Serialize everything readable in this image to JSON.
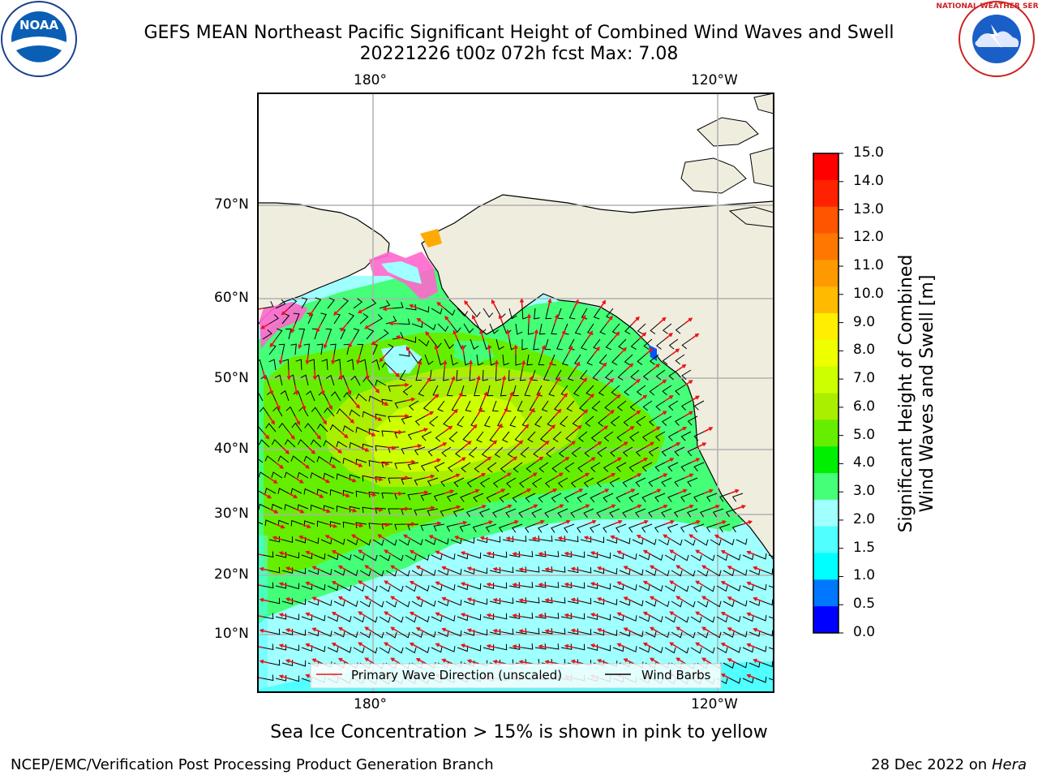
{
  "header": {
    "title_line1": "GEFS MEAN Northeast Pacific Significant Height of Combined Wind Waves and Swell",
    "title_line2": "20221226 t00z 072h fcst   Max: 7.08"
  },
  "logos": {
    "noaa_text": "NOAA",
    "nws_ring_text": "NATIONAL WEATHER SERVICE"
  },
  "map": {
    "lon_labels_top": [
      "180°",
      "120°W"
    ],
    "lon_labels_bottom": [
      "180°",
      "120°W"
    ],
    "lat_labels": [
      "70°N",
      "60°N",
      "50°N",
      "40°N",
      "30°N",
      "20°N",
      "10°N"
    ],
    "legend": {
      "wave_direction": "Primary Wave Direction (unscaled)",
      "wind_barbs": "Wind Barbs"
    },
    "colors": {
      "land": "#efedde",
      "wave_arrow": "#e8141a",
      "grid": "#b0b0b0"
    }
  },
  "colorbar": {
    "label_line1": "Significant Height of Combined",
    "label_line2": "Wind Waves and Swell [m]",
    "ticks": [
      "15.0",
      "14.0",
      "13.0",
      "12.0",
      "11.0",
      "10.0",
      "9.0",
      "8.0",
      "7.0",
      "6.0",
      "5.0",
      "4.0",
      "3.0",
      "2.0",
      "1.5",
      "1.0",
      "0.5",
      "0.0"
    ],
    "bands": [
      "#ff0000",
      "#ff2200",
      "#ff5500",
      "#ff7700",
      "#ff9900",
      "#ffbb00",
      "#ffee00",
      "#eeff00",
      "#ccff00",
      "#aaee00",
      "#66ee00",
      "#00ee00",
      "#44ff77",
      "#a0ffff",
      "#50ffff",
      "#00ffff",
      "#0077ff",
      "#0000ff"
    ]
  },
  "footer": {
    "sea_ice_note": "Sea Ice Concentration > 15% is shown in pink to yellow",
    "left": "NCEP/EMC/Verification Post Processing Product Generation Branch",
    "right_date": "28 Dec 2022 on",
    "right_machine": "Hera"
  }
}
